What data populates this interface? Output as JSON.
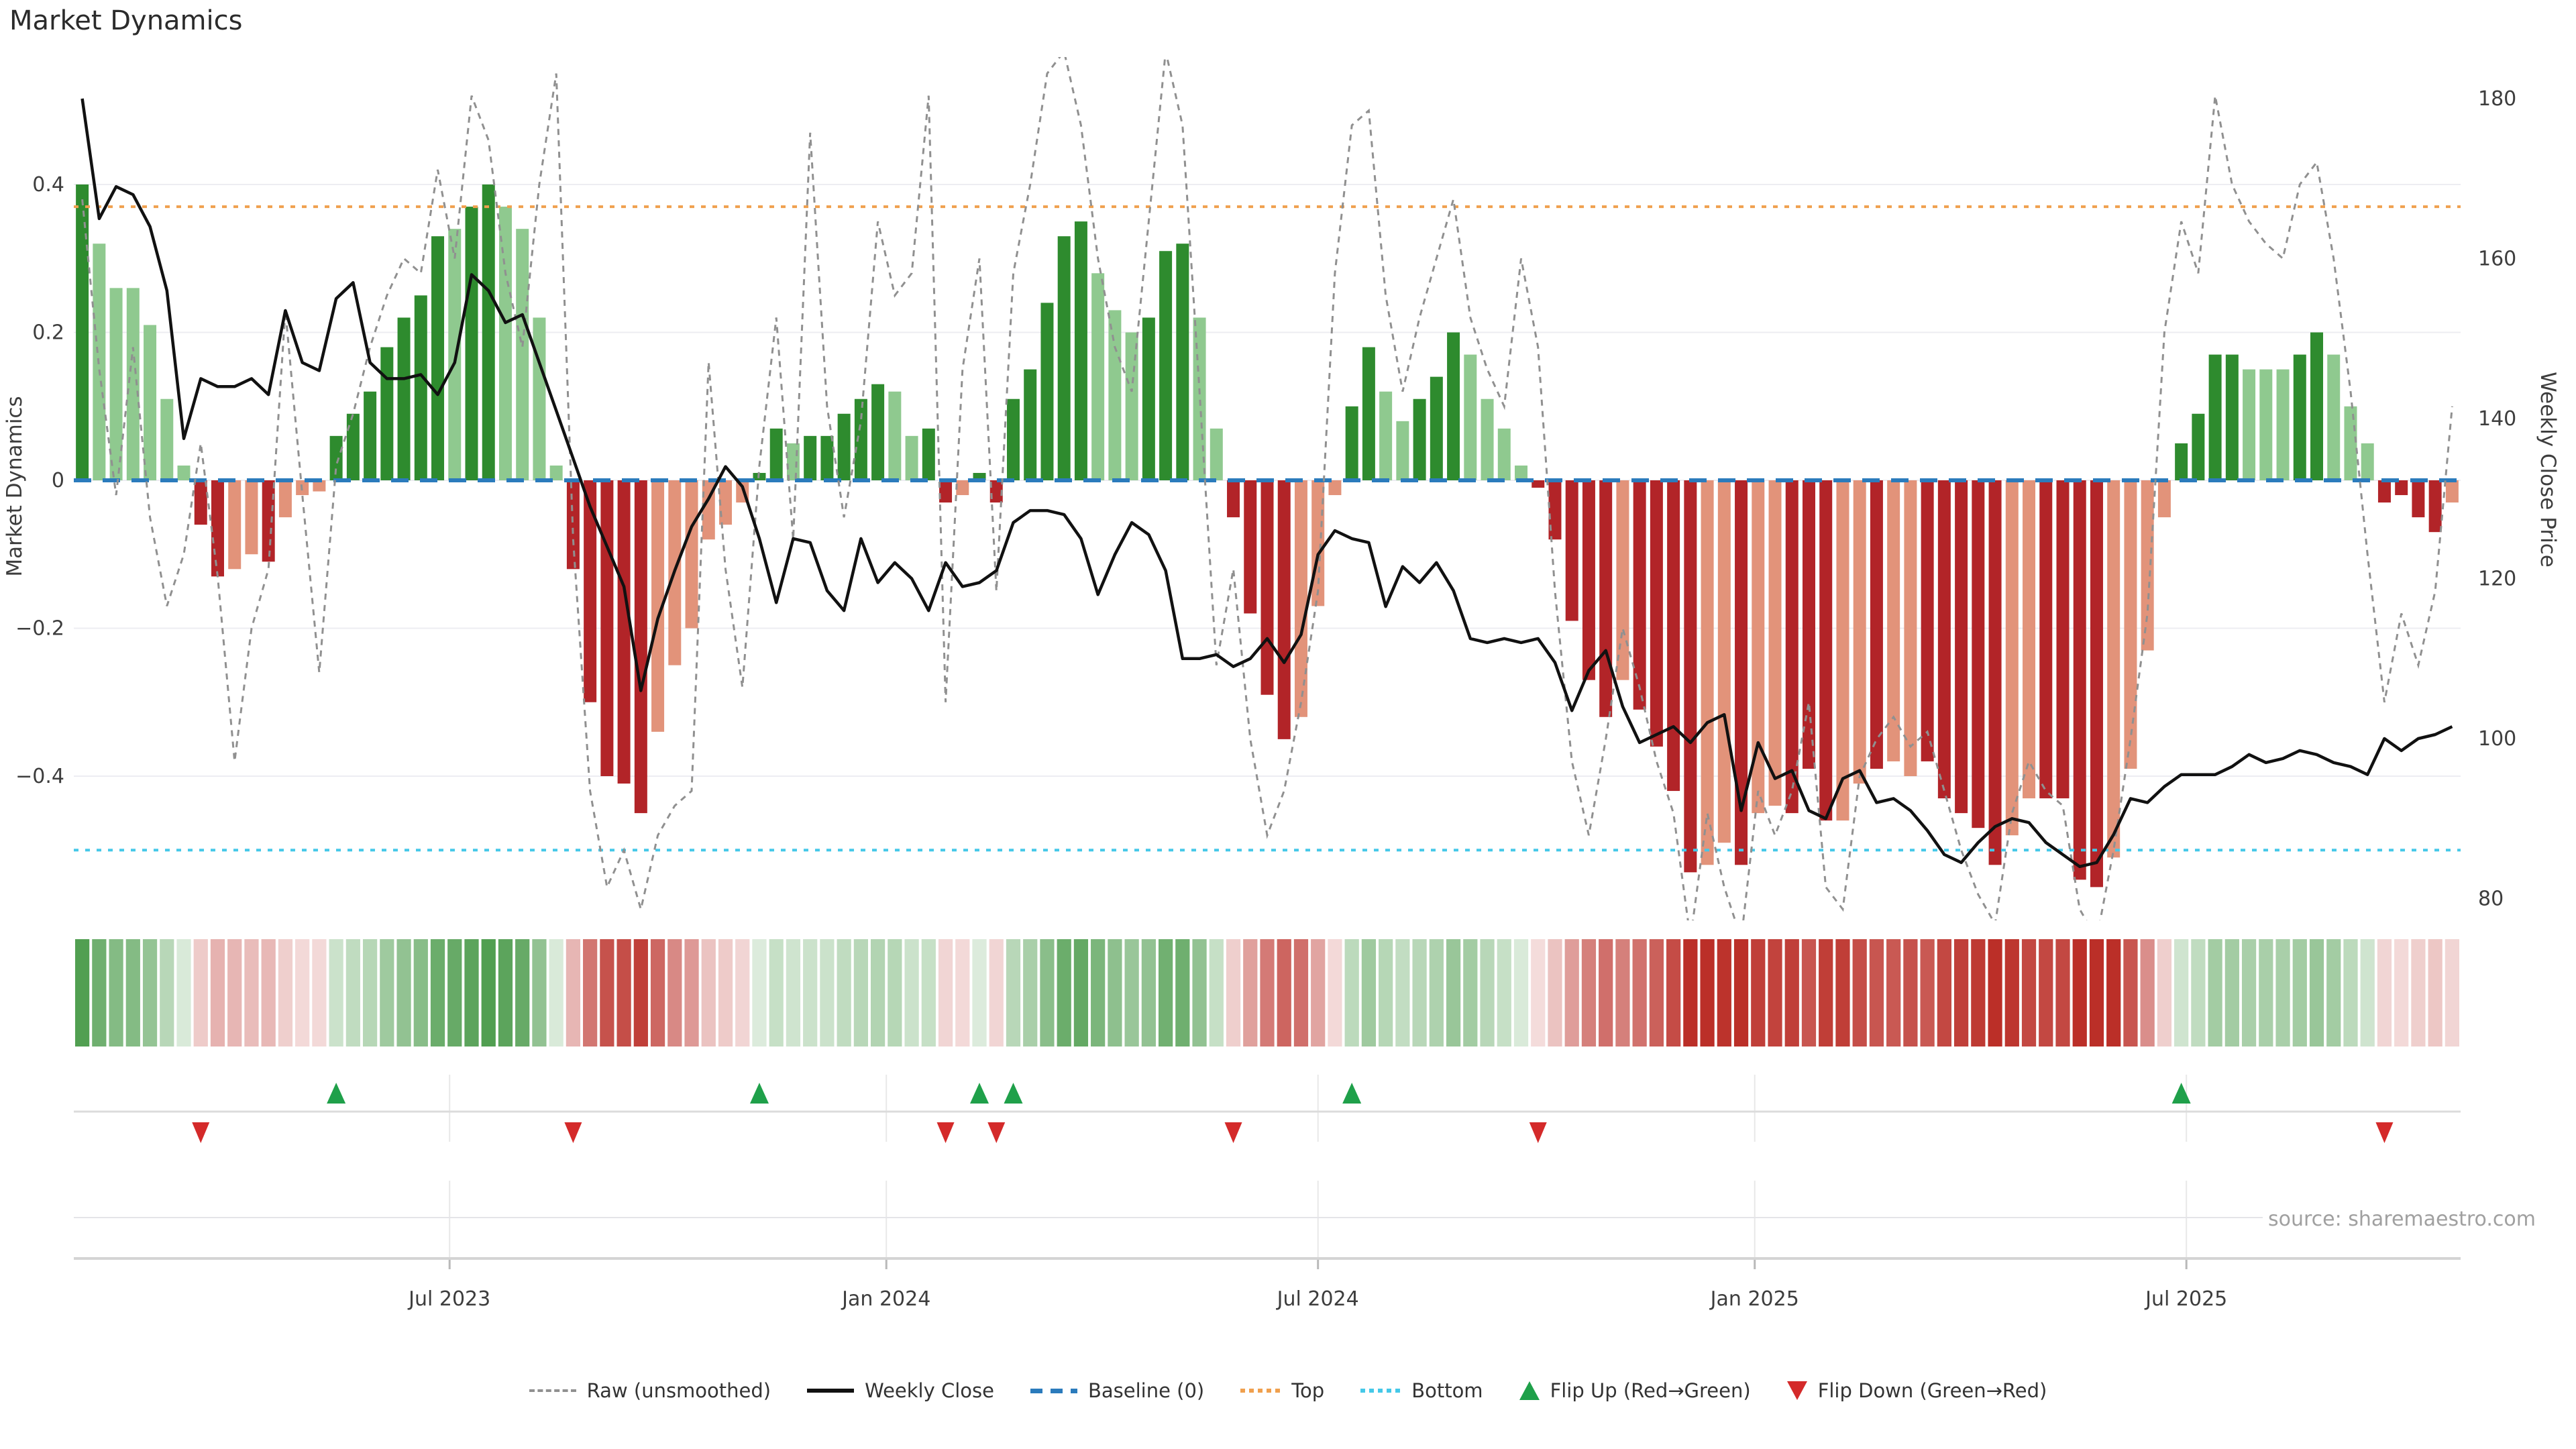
{
  "title": "Market Dynamics",
  "source": "source: sharemaestro.com",
  "axes": {
    "left_label": "Market Dynamics",
    "right_label": "Weekly Close Price",
    "left_ticks": [
      {
        "label": "0.4",
        "value": 0.4
      },
      {
        "label": "0.2",
        "value": 0.2
      },
      {
        "label": "0",
        "value": 0
      },
      {
        "label": "−0.2",
        "value": -0.2
      },
      {
        "label": "−0.4",
        "value": -0.4
      }
    ],
    "right_ticks": [
      {
        "label": "180",
        "value": 180
      },
      {
        "label": "160",
        "value": 160
      },
      {
        "label": "140",
        "value": 140
      },
      {
        "label": "120",
        "value": 120
      },
      {
        "label": "100",
        "value": 100
      },
      {
        "label": "80",
        "value": 80
      }
    ],
    "x_ticks": [
      {
        "label": "Jul 2023",
        "week": 21.7
      },
      {
        "label": "Jan 2024",
        "week": 47.5
      },
      {
        "label": "Jul 2024",
        "week": 73.0
      },
      {
        "label": "Jan 2025",
        "week": 98.8
      },
      {
        "label": "Jul 2025",
        "week": 124.3
      }
    ]
  },
  "legend": {
    "items": [
      {
        "label": "Raw (unsmoothed)",
        "swatch": "raw-dashed-line"
      },
      {
        "label": "Weekly Close",
        "swatch": "black-solid-line"
      },
      {
        "label": "Baseline (0)",
        "swatch": "blue-dashed-line"
      },
      {
        "label": "Top",
        "swatch": "orange-dotted-line"
      },
      {
        "label": "Bottom",
        "swatch": "cyan-dotted-line"
      },
      {
        "label": "Flip Up (Red→Green)",
        "swatch": "green-up-triangle"
      },
      {
        "label": "Flip Down (Green→Red)",
        "swatch": "red-down-triangle"
      }
    ]
  },
  "colors": {
    "dark_green": "#2e8b2e",
    "light_green": "#8fc98f",
    "dark_red": "#b22428",
    "salmon": "#e2937a",
    "heat_green": "#2e8b2e",
    "heat_red": "#bb2f28",
    "weekly_line": "#111111",
    "raw_line": "#909090",
    "top_line": "#f0a04e",
    "bottom_line": "#45c8e8",
    "baseline": "#2b7bbc",
    "grid": "#ededf2",
    "axis_text": "#3d3d3d",
    "panel_line": "#dcdcdc",
    "flip_up": "#1fa04a",
    "flip_down": "#d42a2a"
  },
  "chart_data": {
    "type": "bar",
    "subtype": "bar+line combo with heat strip and flip markers",
    "title": "Market Dynamics",
    "xlabel": "",
    "ylabel_left": "Market Dynamics",
    "ylabel_right": "Weekly Close Price",
    "ylim_left": [
      -0.6,
      0.58
    ],
    "ylim_right": [
      78,
      185
    ],
    "x_tick_labels": [
      "Jul 2023",
      "Jan 2024",
      "Jul 2024",
      "Jan 2025",
      "Jul 2025"
    ],
    "weeks": 141,
    "baseline": 0,
    "top_level": 0.37,
    "bottom_level": -0.5,
    "bars": [
      0.4,
      0.32,
      0.26,
      0.26,
      0.21,
      0.11,
      0.02,
      -0.06,
      -0.13,
      -0.12,
      -0.1,
      -0.11,
      -0.05,
      -0.02,
      -0.015,
      0.06,
      0.09,
      0.12,
      0.18,
      0.22,
      0.25,
      0.33,
      0.34,
      0.37,
      0.4,
      0.37,
      0.34,
      0.22,
      0.02,
      -0.12,
      -0.3,
      -0.4,
      -0.41,
      -0.45,
      -0.34,
      -0.25,
      -0.2,
      -0.08,
      -0.06,
      -0.03,
      0.01,
      0.07,
      0.05,
      0.06,
      0.06,
      0.09,
      0.11,
      0.13,
      0.12,
      0.06,
      0.07,
      -0.03,
      -0.02,
      0.01,
      -0.03,
      0.11,
      0.15,
      0.24,
      0.33,
      0.35,
      0.28,
      0.23,
      0.2,
      0.22,
      0.31,
      0.32,
      0.22,
      0.07,
      -0.05,
      -0.18,
      -0.29,
      -0.35,
      -0.32,
      -0.17,
      -0.02,
      0.1,
      0.18,
      0.12,
      0.08,
      0.11,
      0.14,
      0.2,
      0.17,
      0.11,
      0.07,
      0.02,
      -0.01,
      -0.08,
      -0.19,
      -0.27,
      -0.32,
      -0.27,
      -0.31,
      -0.36,
      -0.42,
      -0.53,
      -0.52,
      -0.49,
      -0.52,
      -0.45,
      -0.44,
      -0.45,
      -0.39,
      -0.46,
      -0.46,
      -0.41,
      -0.39,
      -0.38,
      -0.4,
      -0.38,
      -0.43,
      -0.45,
      -0.47,
      -0.52,
      -0.48,
      -0.43,
      -0.43,
      -0.43,
      -0.54,
      -0.55,
      -0.51,
      -0.39,
      -0.23,
      -0.05,
      0.05,
      0.09,
      0.17,
      0.17,
      0.15,
      0.15,
      0.15,
      0.17,
      0.2,
      0.17,
      0.1,
      0.05,
      -0.03,
      -0.02,
      -0.05,
      -0.07,
      -0.03
    ],
    "bar_shades": [
      "dg",
      "lg",
      "lg",
      "lg",
      "lg",
      "lg",
      "lg",
      "dr",
      "dr",
      "sa",
      "sa",
      "dr",
      "sa",
      "sa",
      "sa",
      "dg",
      "dg",
      "dg",
      "dg",
      "dg",
      "dg",
      "dg",
      "lg",
      "dg",
      "dg",
      "lg",
      "lg",
      "lg",
      "lg",
      "dr",
      "dr",
      "dr",
      "dr",
      "dr",
      "sa",
      "sa",
      "sa",
      "sa",
      "sa",
      "sa",
      "dg",
      "dg",
      "lg",
      "dg",
      "dg",
      "dg",
      "dg",
      "dg",
      "lg",
      "lg",
      "dg",
      "dr",
      "sa",
      "dg",
      "dr",
      "dg",
      "dg",
      "dg",
      "dg",
      "dg",
      "lg",
      "lg",
      "lg",
      "dg",
      "dg",
      "dg",
      "lg",
      "lg",
      "dr",
      "dr",
      "dr",
      "dr",
      "sa",
      "sa",
      "sa",
      "dg",
      "dg",
      "lg",
      "lg",
      "dg",
      "dg",
      "dg",
      "lg",
      "lg",
      "lg",
      "lg",
      "dr",
      "dr",
      "dr",
      "dr",
      "dr",
      "sa",
      "dr",
      "dr",
      "dr",
      "dr",
      "sa",
      "sa",
      "dr",
      "sa",
      "sa",
      "dr",
      "dr",
      "dr",
      "sa",
      "sa",
      "dr",
      "sa",
      "sa",
      "dr",
      "dr",
      "dr",
      "dr",
      "dr",
      "sa",
      "sa",
      "dr",
      "dr",
      "dr",
      "dr",
      "sa",
      "sa",
      "sa",
      "sa",
      "dg",
      "dg",
      "dg",
      "dg",
      "lg",
      "lg",
      "lg",
      "dg",
      "dg",
      "lg",
      "lg",
      "lg",
      "dr",
      "dr",
      "dr",
      "dr",
      "sa"
    ],
    "weekly_close": [
      180,
      165,
      169,
      168,
      164,
      156,
      137.5,
      145,
      144,
      144,
      145,
      143,
      153.5,
      147,
      146,
      155,
      157,
      147,
      145,
      145,
      145.5,
      143,
      147,
      158,
      156,
      152,
      153,
      147,
      141,
      135,
      129,
      124,
      119,
      106,
      115,
      121,
      126.5,
      130,
      134,
      131.5,
      125,
      117,
      125,
      124.5,
      118.5,
      116,
      125,
      119.5,
      122,
      120,
      116,
      122,
      119,
      119.5,
      121,
      127,
      128.5,
      128.5,
      128,
      125,
      118,
      123,
      127,
      125.5,
      121,
      110,
      110,
      110.5,
      109,
      110,
      112.5,
      109.5,
      113,
      123,
      126,
      125,
      124.5,
      116.5,
      121.5,
      119.5,
      122,
      118.5,
      112.5,
      112,
      112.5,
      112,
      112.5,
      109.5,
      103.5,
      108.5,
      111,
      104,
      99.5,
      100.5,
      101.5,
      99.5,
      102,
      103,
      91,
      99.5,
      95,
      96,
      91,
      90,
      95,
      96,
      92,
      92.5,
      91,
      88.5,
      85.5,
      84.5,
      87,
      89,
      90,
      89.5,
      87,
      85.5,
      84,
      84.5,
      88,
      92.5,
      92,
      94,
      95.5,
      95.5,
      95.5,
      96.5,
      98,
      97,
      97.5,
      98.5,
      98,
      97,
      96.5,
      95.5,
      100,
      98.5,
      100,
      100.5,
      101.5
    ],
    "raw": [
      0.38,
      0.15,
      -0.02,
      0.18,
      -0.05,
      -0.17,
      -0.1,
      0.05,
      -0.13,
      -0.38,
      -0.2,
      -0.12,
      0.23,
      -0.02,
      -0.26,
      0.02,
      0.09,
      0.18,
      0.25,
      0.3,
      0.28,
      0.42,
      0.3,
      0.52,
      0.46,
      0.28,
      0.18,
      0.4,
      0.55,
      -0.08,
      -0.42,
      -0.55,
      -0.5,
      -0.58,
      -0.48,
      -0.44,
      -0.42,
      0.16,
      -0.12,
      -0.28,
      0.02,
      0.22,
      -0.08,
      0.47,
      0.1,
      -0.05,
      0.08,
      0.35,
      0.25,
      0.28,
      0.52,
      -0.3,
      0.15,
      0.3,
      -0.15,
      0.28,
      0.4,
      0.55,
      0.58,
      0.48,
      0.3,
      0.18,
      0.12,
      0.35,
      0.58,
      0.48,
      0.12,
      -0.25,
      -0.12,
      -0.35,
      -0.48,
      -0.42,
      -0.3,
      -0.15,
      0.28,
      0.48,
      0.5,
      0.25,
      0.12,
      0.22,
      0.3,
      0.38,
      0.22,
      0.15,
      0.1,
      0.3,
      0.18,
      -0.15,
      -0.38,
      -0.48,
      -0.35,
      -0.2,
      -0.28,
      -0.38,
      -0.45,
      -0.62,
      -0.45,
      -0.55,
      -0.62,
      -0.42,
      -0.48,
      -0.42,
      -0.3,
      -0.55,
      -0.58,
      -0.4,
      -0.35,
      -0.32,
      -0.36,
      -0.34,
      -0.42,
      -0.5,
      -0.56,
      -0.6,
      -0.45,
      -0.38,
      -0.42,
      -0.44,
      -0.58,
      -0.62,
      -0.5,
      -0.35,
      -0.18,
      0.2,
      0.35,
      0.28,
      0.52,
      0.4,
      0.35,
      0.32,
      0.3,
      0.4,
      0.43,
      0.3,
      0.12,
      -0.1,
      -0.3,
      -0.18,
      -0.25,
      -0.15,
      0.1
    ],
    "flip_up_weeks": [
      16,
      41,
      54,
      56,
      76,
      125
    ],
    "flip_down_weeks": [
      8,
      30,
      52,
      55,
      69,
      87,
      137
    ],
    "legend_entries": [
      "Raw (unsmoothed)",
      "Weekly Close",
      "Baseline (0)",
      "Top",
      "Bottom",
      "Flip Up (Red→Green)",
      "Flip Down (Green→Red)"
    ],
    "grid": "horizontal only",
    "legend_position": "bottom center"
  }
}
